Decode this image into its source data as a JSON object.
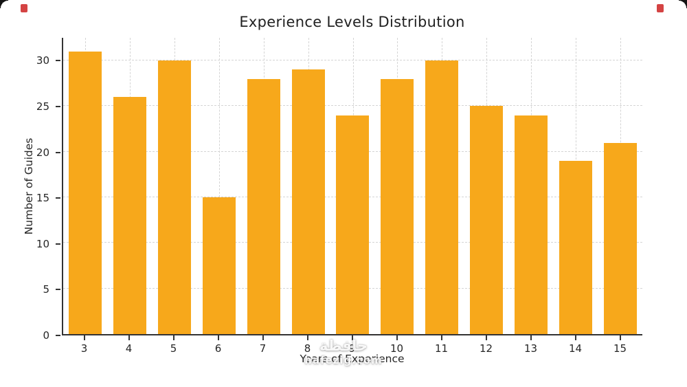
{
  "page": {
    "background": "#ffffff"
  },
  "chart_data": {
    "type": "bar",
    "title": "Experience Levels Distribution",
    "xlabel": "Years of Experience",
    "ylabel": "Number of Guides",
    "categories": [
      "3",
      "4",
      "5",
      "6",
      "7",
      "8",
      "9",
      "10",
      "11",
      "12",
      "13",
      "14",
      "15"
    ],
    "values": [
      31,
      26,
      30,
      15,
      28,
      29,
      24,
      28,
      30,
      25,
      24,
      19,
      21
    ],
    "yticks": [
      0,
      5,
      10,
      15,
      20,
      25,
      30
    ],
    "ylim": [
      0,
      32.5
    ],
    "grid": "dashed-both-axes",
    "legend": "none",
    "bar_color": "#F7A81B",
    "grid_color": "#d4d4d4",
    "axis_color": "#333333"
  },
  "watermark": {
    "line1": "حافظة",
    "line2": "hafezig.com"
  },
  "decorations": {
    "corner_mark_color": "#cc2222"
  }
}
